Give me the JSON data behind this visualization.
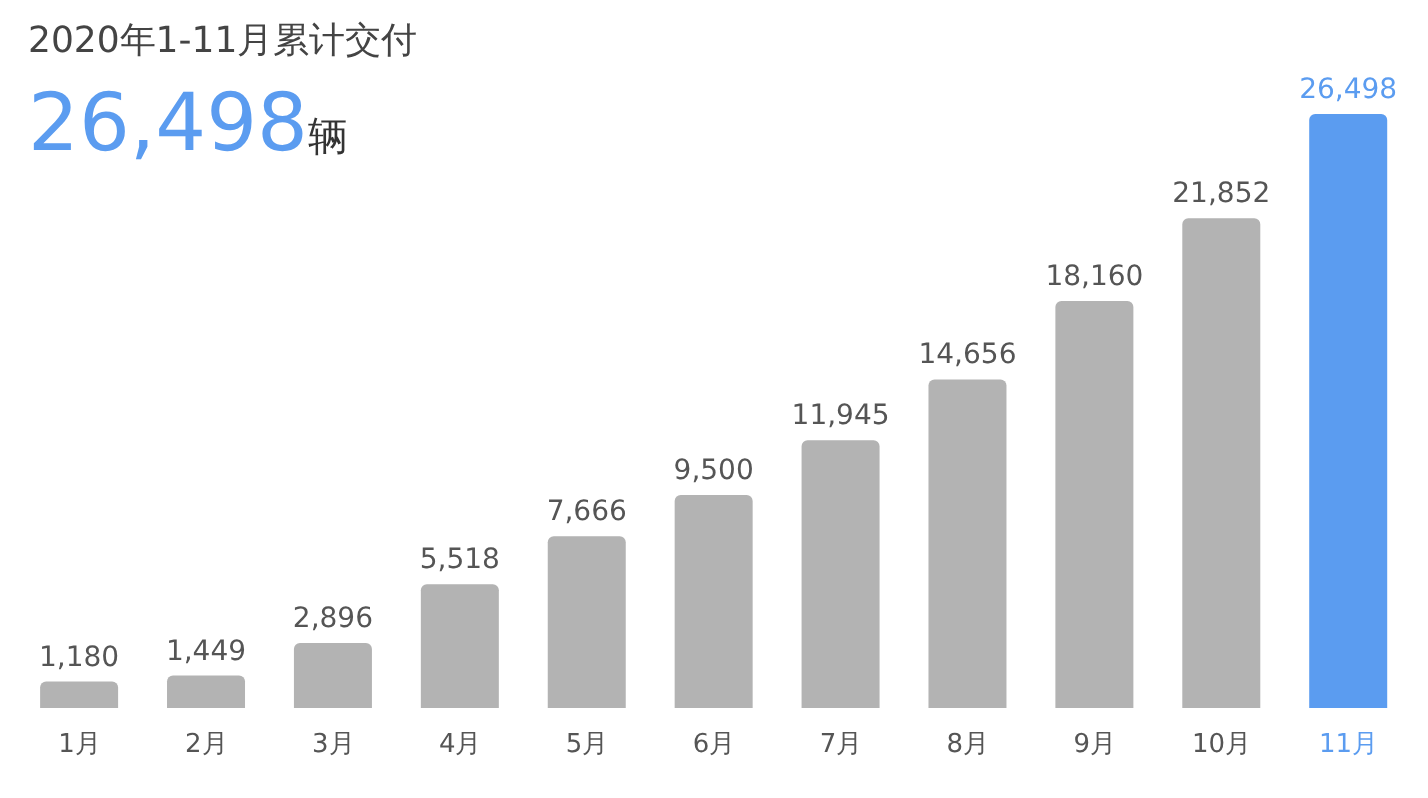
{
  "chart_data": {
    "type": "bar",
    "title": "2020年1-11月累计交付",
    "subtitle": "26,498辆",
    "categories": [
      "1月",
      "2月",
      "3月",
      "4月",
      "5月",
      "6月",
      "7月",
      "8月",
      "9月",
      "10月",
      "11月"
    ],
    "values": [
      1180,
      1449,
      2896,
      5518,
      7666,
      9500,
      11945,
      14656,
      18160,
      21852,
      26498
    ],
    "colors": [
      "#b3b3b3",
      "#b3b3b3",
      "#b3b3b3",
      "#b3b3b3",
      "#b3b3b3",
      "#b3b3b3",
      "#b3b3b3",
      "#b3b3b3",
      "#b3b3b3",
      "#b3b3b3",
      "#5b9cf0"
    ],
    "value_labels": [
      "1,180",
      "1,449",
      "2,896",
      "5,518",
      "7,666",
      "9,500",
      "11,945",
      "14,656",
      "18,160",
      "21,852",
      "26,498"
    ],
    "grid": false,
    "legend": false
  }
}
